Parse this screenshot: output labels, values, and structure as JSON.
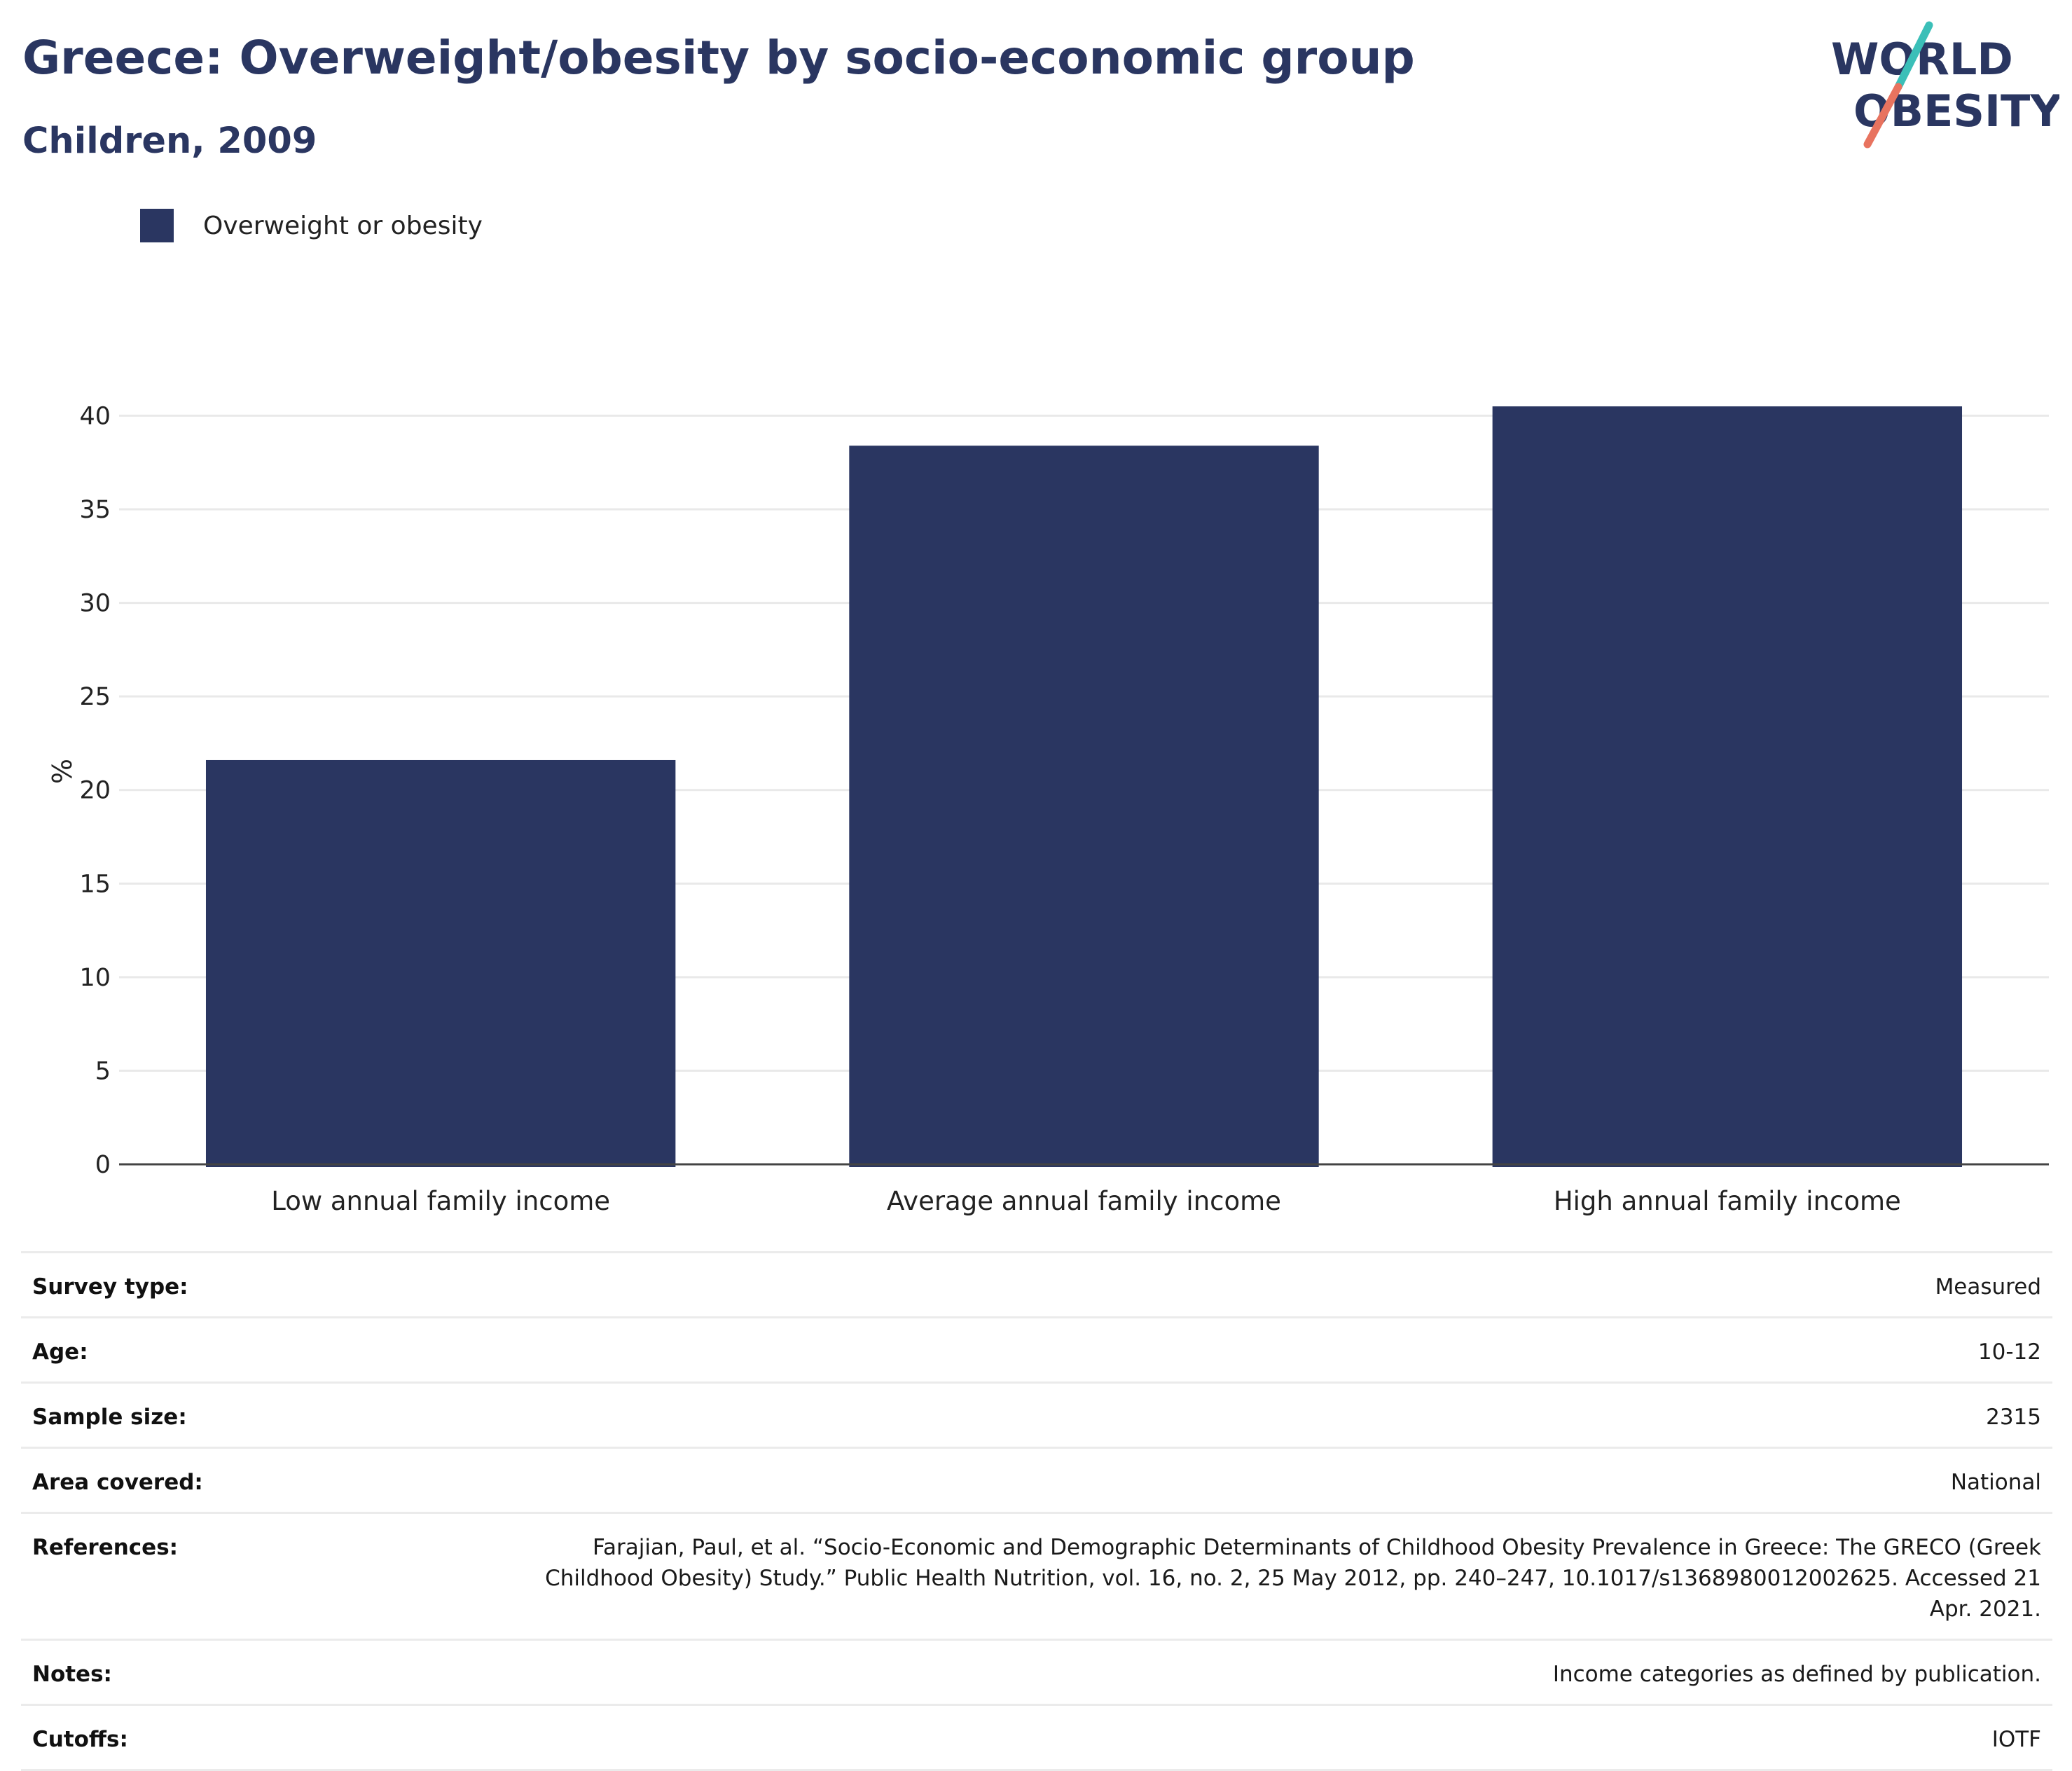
{
  "header": {
    "title": "Greece: Overweight/obesity by socio-economic group",
    "subtitle": "Children, 2009"
  },
  "logo": {
    "line1": "WORLD",
    "line2": "OBESITY"
  },
  "colors": {
    "bar": "#2a3661",
    "title": "#2a3661",
    "logo_teal": "#3bbfb8",
    "logo_coral": "#e8735f",
    "grid": "#e9e9e9",
    "axis": "#444444"
  },
  "legend": {
    "label": "Overweight or obesity"
  },
  "chart_data": {
    "type": "bar",
    "categories": [
      "Low annual family income",
      "Average annual family income",
      "High annual family income"
    ],
    "series": [
      {
        "name": "Overweight or obesity",
        "values": [
          21.6,
          38.4,
          40.5
        ]
      }
    ],
    "ylabel": "%",
    "xlabel": "",
    "ylim": [
      0,
      42
    ],
    "yticks": [
      0,
      5,
      10,
      15,
      20,
      25,
      30,
      35,
      40
    ],
    "grid": true,
    "legend_position": "top-left"
  },
  "info": {
    "rows": [
      {
        "label": "Survey type:",
        "value": "Measured"
      },
      {
        "label": "Age:",
        "value": "10-12"
      },
      {
        "label": "Sample size:",
        "value": "2315"
      },
      {
        "label": "Area covered:",
        "value": "National"
      },
      {
        "label": "References:",
        "value": "Farajian, Paul, et al. “Socio-Economic and Demographic Determinants of Childhood Obesity Prevalence in Greece: The GRECO (Greek Childhood Obesity) Study.” Public Health Nutrition, vol. 16, no. 2, 25 May 2012, pp. 240–247, 10.1017/s1368980012002625. Accessed 21 Apr. 2021."
      },
      {
        "label": "Notes:",
        "value": "Income categories as defined by publication."
      },
      {
        "label": "Cutoffs:",
        "value": "IOTF"
      }
    ]
  }
}
